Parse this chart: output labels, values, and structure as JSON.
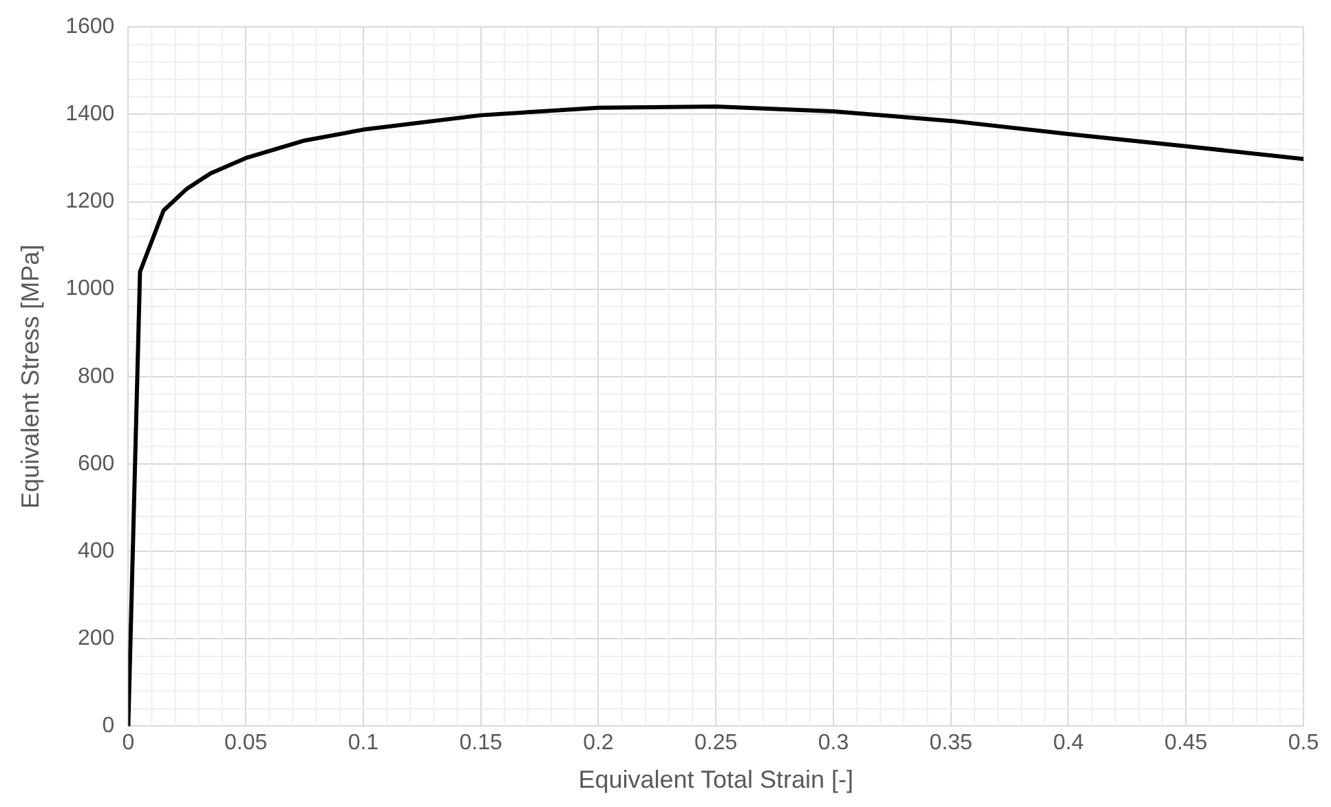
{
  "chart_data": {
    "type": "line",
    "xlabel": "Equivalent Total Strain [-]",
    "ylabel": "Equivalent Stress [MPa]",
    "x": [
      0,
      0.005,
      0.015,
      0.025,
      0.035,
      0.05,
      0.075,
      0.1,
      0.15,
      0.2,
      0.25,
      0.3,
      0.35,
      0.4,
      0.45,
      0.5
    ],
    "series": [
      {
        "color": "#000000",
        "values": [
          0,
          1040,
          1180,
          1230,
          1265,
          1300,
          1340,
          1365,
          1398,
          1415,
          1418,
          1407,
          1385,
          1355,
          1327,
          1298
        ]
      }
    ],
    "xlim": [
      0,
      0.5
    ],
    "xticks": [
      0,
      0.05,
      0.1,
      0.15,
      0.2,
      0.25,
      0.3,
      0.35,
      0.4,
      0.45,
      0.5
    ],
    "ylim": [
      0,
      1600
    ],
    "yticks": [
      0,
      200,
      400,
      600,
      800,
      1000,
      1200,
      1400,
      1600
    ],
    "grid": true,
    "legend": false,
    "marker": "none",
    "line_style": "solid"
  }
}
